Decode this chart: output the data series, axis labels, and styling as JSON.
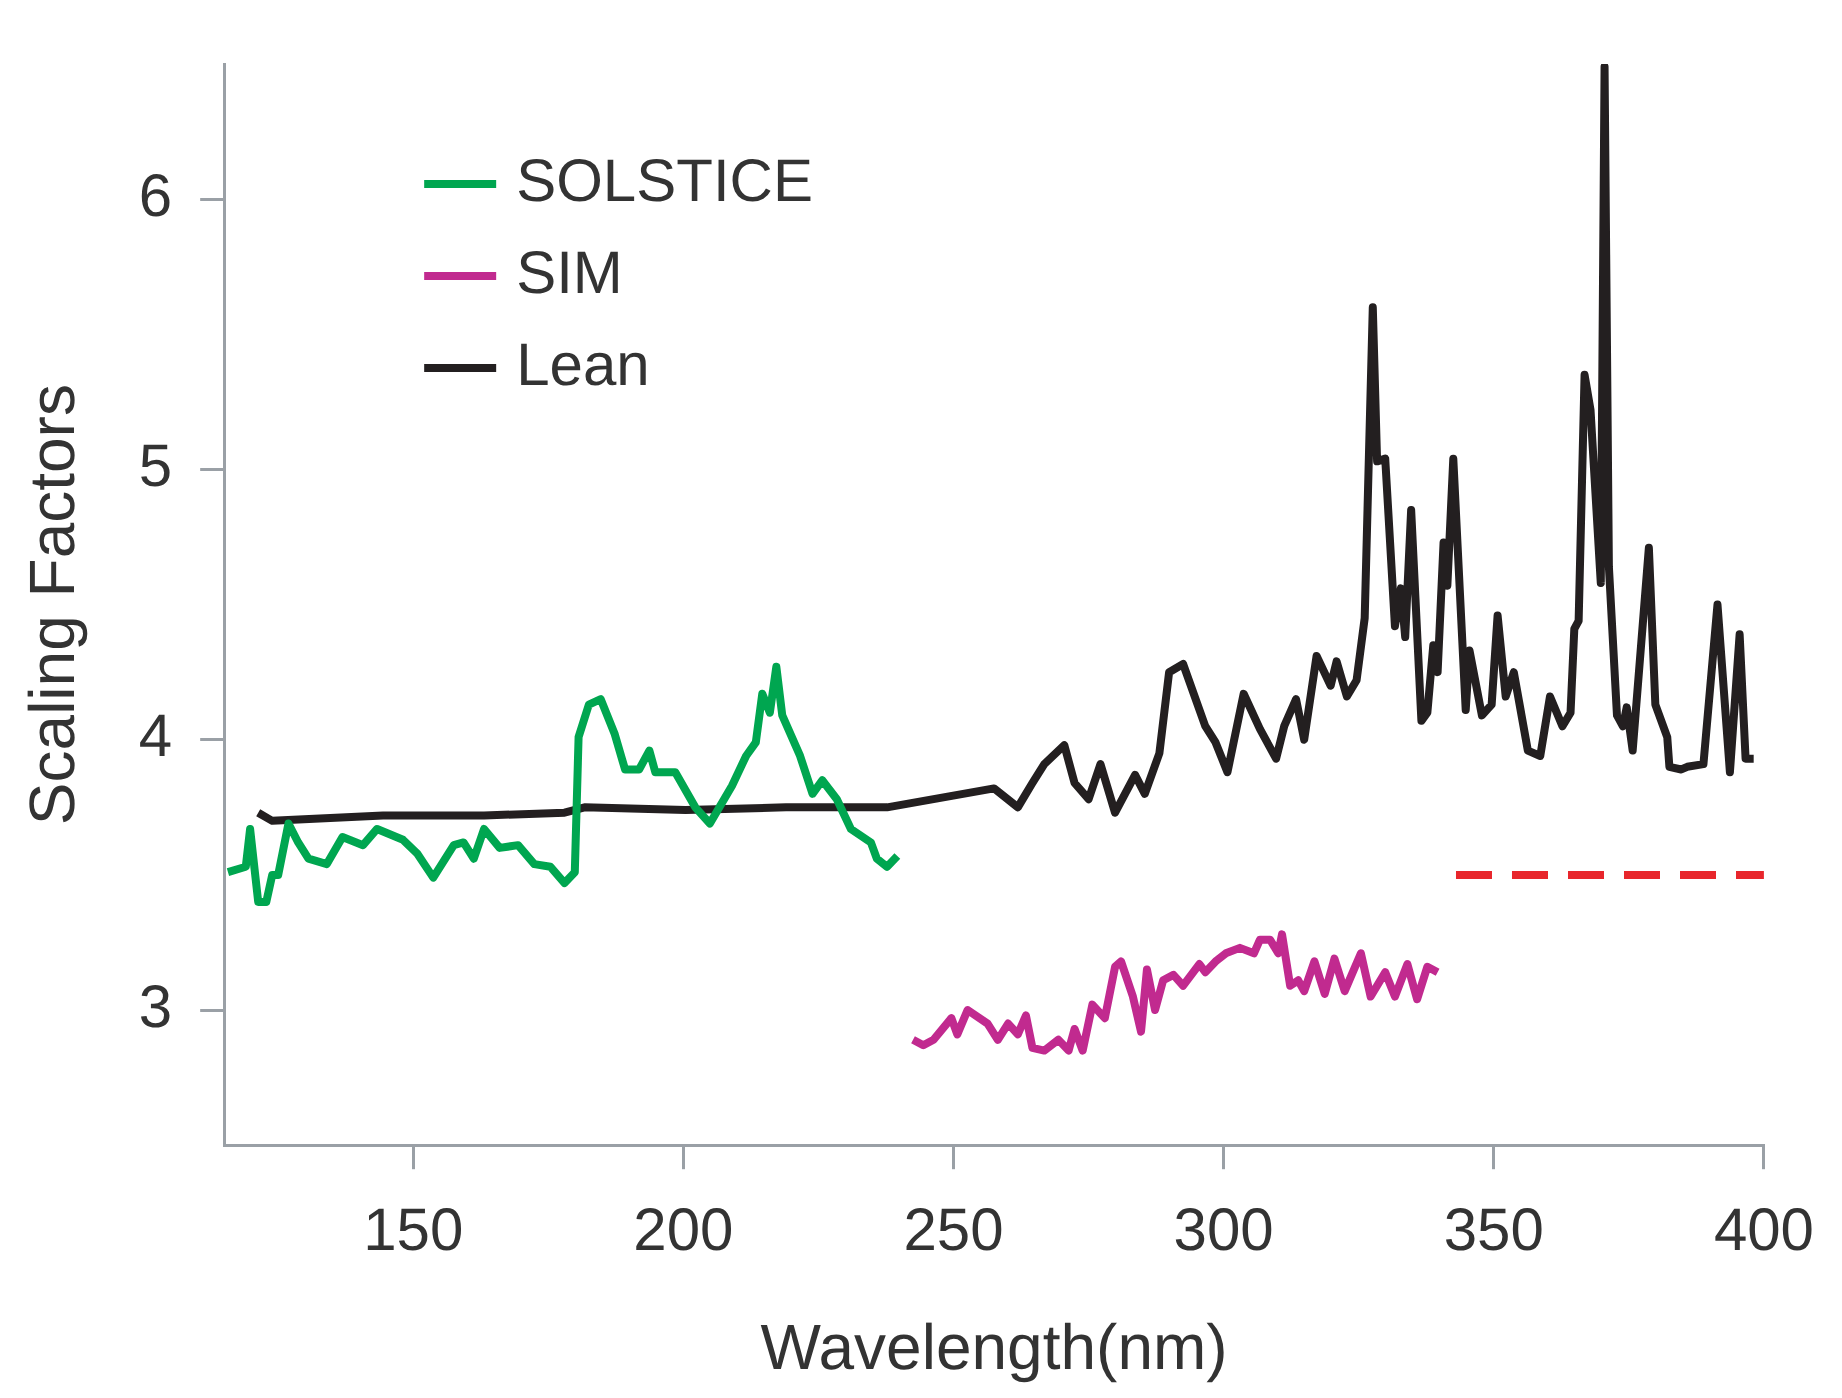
{
  "chart_data": {
    "type": "line",
    "xlabel": "Wavelength(nm)",
    "ylabel": "Scaling Factors",
    "xlim": [
      115,
      400
    ],
    "xticks": [
      150,
      200,
      250,
      300,
      350,
      400
    ],
    "ylim": [
      2.5,
      6.5
    ],
    "yticks": [
      3,
      4,
      5,
      6
    ],
    "grid": false,
    "legend": "top left",
    "marker": "none",
    "series": [
      {
        "name": "SOLSTICE",
        "color": "#00a650",
        "x": [
          115.7,
          119.0,
          119.8,
          121.3,
          122.8,
          123.9,
          125.0,
          126.9,
          128.7,
          130.6,
          134.0,
          136.9,
          140.7,
          143.3,
          148.1,
          150.7,
          153.7,
          157.5,
          159.3,
          161.2,
          163.1,
          166.0,
          169.4,
          172.4,
          175.4,
          178.0,
          179.9,
          180.6,
          182.5,
          184.7,
          187.3,
          189.2,
          191.8,
          193.7,
          194.8,
          198.5,
          202.2,
          204.9,
          209.0,
          211.6,
          213.4,
          214.6,
          216.0,
          217.2,
          218.3,
          221.6,
          223.9,
          225.7,
          228.4,
          231.0,
          234.7,
          235.8,
          237.7,
          239.6
        ],
        "values": [
          3.51,
          3.53,
          3.67,
          3.4,
          3.4,
          3.5,
          3.5,
          3.69,
          3.62,
          3.56,
          3.54,
          3.64,
          3.61,
          3.67,
          3.63,
          3.58,
          3.49,
          3.61,
          3.62,
          3.56,
          3.67,
          3.6,
          3.61,
          3.54,
          3.53,
          3.47,
          3.51,
          4.01,
          4.13,
          4.15,
          4.02,
          3.89,
          3.89,
          3.96,
          3.88,
          3.88,
          3.75,
          3.69,
          3.83,
          3.94,
          3.99,
          4.17,
          4.1,
          4.27,
          4.09,
          3.94,
          3.8,
          3.85,
          3.78,
          3.67,
          3.62,
          3.56,
          3.53,
          3.57
        ]
      },
      {
        "name": "SIM",
        "color": "#c12a8f",
        "x": [
          242.5,
          244.4,
          246.3,
          249.6,
          250.7,
          252.6,
          256.3,
          258.2,
          260.1,
          261.9,
          263.4,
          264.6,
          266.8,
          269.4,
          271.3,
          272.4,
          273.9,
          275.7,
          278.0,
          279.9,
          281.0,
          283.2,
          284.7,
          285.8,
          287.3,
          288.8,
          290.7,
          292.5,
          295.5,
          296.6,
          298.5,
          300.4,
          303.0,
          305.6,
          306.7,
          308.6,
          310.1,
          310.8,
          312.3,
          313.8,
          314.9,
          316.8,
          318.7,
          320.5,
          322.4,
          325.4,
          327.2,
          329.9,
          331.7,
          334.0,
          335.8,
          337.7,
          339.6
        ],
        "values": [
          2.89,
          2.87,
          2.89,
          2.97,
          2.91,
          3.0,
          2.95,
          2.89,
          2.95,
          2.91,
          2.98,
          2.86,
          2.85,
          2.89,
          2.85,
          2.93,
          2.85,
          3.02,
          2.97,
          3.16,
          3.18,
          3.05,
          2.92,
          3.15,
          3.0,
          3.11,
          3.13,
          3.09,
          3.17,
          3.14,
          3.18,
          3.21,
          3.23,
          3.21,
          3.26,
          3.26,
          3.21,
          3.28,
          3.09,
          3.11,
          3.07,
          3.18,
          3.06,
          3.19,
          3.07,
          3.21,
          3.05,
          3.14,
          3.05,
          3.17,
          3.04,
          3.16,
          3.14
        ]
      },
      {
        "name": "Lean",
        "color": "#231f20",
        "x": [
          121.3,
          123.9,
          144.4,
          163.1,
          178.0,
          181.7,
          200.4,
          219.0,
          237.7,
          257.5,
          261.9,
          264.6,
          266.8,
          270.5,
          272.4,
          275.0,
          277.2,
          279.9,
          283.6,
          285.4,
          288.1,
          289.9,
          292.5,
          296.6,
          298.5,
          300.7,
          303.7,
          306.7,
          309.7,
          311.2,
          313.4,
          314.9,
          317.2,
          319.8,
          320.9,
          322.8,
          324.6,
          326.1,
          327.6,
          328.4,
          329.9,
          331.7,
          332.8,
          333.6,
          334.7,
          336.6,
          337.7,
          338.8,
          339.6,
          340.7,
          341.4,
          342.5,
          344.8,
          345.5,
          347.8,
          349.6,
          350.7,
          352.2,
          353.7,
          356.3,
          358.6,
          360.4,
          362.7,
          364.2,
          364.9,
          365.7,
          366.8,
          367.9,
          369.8,
          370.5,
          371.3,
          372.8,
          373.9,
          374.6,
          375.7,
          378.7,
          379.9,
          382.1,
          382.5,
          384.7,
          385.8,
          388.8,
          391.4,
          393.7,
          395.5,
          396.6,
          398.1
        ],
        "values": [
          3.73,
          3.7,
          3.72,
          3.72,
          3.73,
          3.75,
          3.74,
          3.75,
          3.75,
          3.82,
          3.75,
          3.84,
          3.91,
          3.98,
          3.84,
          3.78,
          3.91,
          3.73,
          3.87,
          3.8,
          3.95,
          4.25,
          4.28,
          4.05,
          3.99,
          3.88,
          4.17,
          4.04,
          3.93,
          4.05,
          4.15,
          4.0,
          4.31,
          4.2,
          4.29,
          4.16,
          4.22,
          4.45,
          5.6,
          5.03,
          5.04,
          4.42,
          4.56,
          4.38,
          4.85,
          4.07,
          4.1,
          4.35,
          4.25,
          4.73,
          4.57,
          5.04,
          4.11,
          4.33,
          4.09,
          4.13,
          4.46,
          4.16,
          4.25,
          3.96,
          3.94,
          4.16,
          4.05,
          4.1,
          4.41,
          4.44,
          5.35,
          5.22,
          4.58,
          6.49,
          4.64,
          4.09,
          4.05,
          4.12,
          3.96,
          4.71,
          4.13,
          4.01,
          3.9,
          3.89,
          3.9,
          3.91,
          4.5,
          3.88,
          4.39,
          3.93,
          3.93
        ]
      },
      {
        "color": "#e8262c",
        "line_style": "dashed",
        "x": [
          343,
          400
        ],
        "values": [
          3.5,
          3.5
        ]
      }
    ]
  }
}
